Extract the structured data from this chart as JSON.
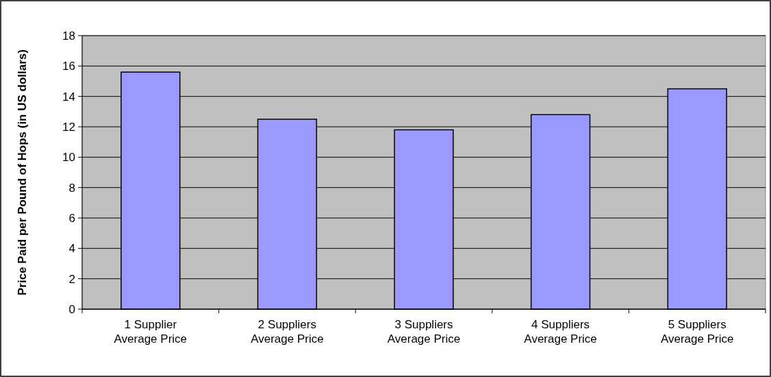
{
  "chart_data": {
    "type": "bar",
    "ylabel": "Price Paid per Pound of Hops (in US dollars)",
    "categories": [
      "1 Supplier Average Price",
      "2 Suppliers Average Price",
      "3 Suppliers Average Price",
      "4 Suppliers Average Price",
      "5 Suppliers Average Price"
    ],
    "values": [
      15.6,
      12.5,
      11.8,
      12.8,
      14.5
    ],
    "color": "#9999ff",
    "ylim": [
      0,
      18
    ],
    "yticks": [
      0,
      2,
      4,
      6,
      8,
      10,
      12,
      14,
      16,
      18
    ],
    "grid": "y"
  }
}
